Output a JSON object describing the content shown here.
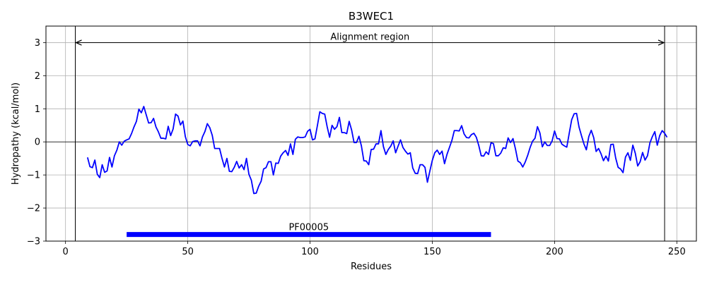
{
  "chart_data": {
    "type": "line",
    "title": "B3WEC1",
    "xlabel": "Residues",
    "ylabel": "Hydropathy (kcal/mol)",
    "xlim": [
      -8,
      258
    ],
    "ylim": [
      -3,
      3.5
    ],
    "x_ticks": [
      0,
      50,
      100,
      150,
      200,
      250
    ],
    "x_tick_labels": [
      "0",
      "50",
      "100",
      "150",
      "200",
      "250"
    ],
    "y_ticks": [
      -3,
      -2,
      -1,
      0,
      1,
      2,
      3
    ],
    "y_tick_labels": [
      "−3",
      "−2",
      "−1",
      "0",
      "1",
      "2",
      "3"
    ],
    "grid": true,
    "zero_line": true,
    "series": [
      {
        "color": "#0000ff",
        "x": [
          9,
          10,
          11,
          12,
          13,
          14,
          15,
          16,
          17,
          18,
          19,
          20,
          21,
          22,
          23,
          24,
          25,
          26,
          27,
          28,
          29,
          30,
          31,
          32,
          33,
          34,
          35,
          36,
          37,
          38,
          39,
          40,
          41,
          42,
          43,
          44,
          45,
          46,
          47,
          48,
          49,
          50,
          51,
          52,
          53,
          54,
          55,
          56,
          57,
          58,
          59,
          60,
          61,
          62,
          63,
          64,
          65,
          66,
          67,
          68,
          69,
          70,
          71,
          72,
          73,
          74,
          75,
          76,
          77,
          78,
          79,
          80,
          81,
          82,
          83,
          84,
          85,
          86,
          87,
          88,
          89,
          90,
          91,
          92,
          93,
          94,
          95,
          96,
          97,
          98,
          99,
          100,
          101,
          102,
          103,
          104,
          105,
          106,
          107,
          108,
          109,
          110,
          111,
          112,
          113,
          114,
          115,
          116,
          117,
          118,
          119,
          120,
          121,
          122,
          123,
          124,
          125,
          126,
          127,
          128,
          129,
          130,
          131,
          132,
          133,
          134,
          135,
          136,
          137,
          138,
          139,
          140,
          141,
          142,
          143,
          144,
          145,
          146,
          147,
          148,
          149,
          150,
          151,
          152,
          153,
          154,
          155,
          156,
          157,
          158,
          159,
          160,
          161,
          162,
          163,
          164,
          165,
          166,
          167,
          168,
          169,
          170,
          171,
          172,
          173,
          174,
          175,
          176,
          177,
          178,
          179,
          180,
          181,
          182,
          183,
          184,
          185,
          186,
          187,
          188,
          189,
          190,
          191,
          192,
          193,
          194,
          195,
          196,
          197,
          198,
          199,
          200,
          201,
          202,
          203,
          204,
          205,
          206,
          207,
          208,
          209,
          210,
          211,
          212,
          213,
          214,
          215,
          216,
          217,
          218,
          219,
          220,
          221,
          222,
          223,
          224,
          225,
          226,
          227,
          228,
          229,
          230,
          231,
          232,
          233,
          234,
          235,
          236,
          237,
          238,
          239,
          240,
          241,
          242,
          243,
          244,
          245,
          246
        ],
        "y": [
          -0.47,
          -0.75,
          -0.78,
          -0.55,
          -0.98,
          -1.08,
          -0.69,
          -0.92,
          -0.88,
          -0.47,
          -0.76,
          -0.42,
          -0.25,
          0.0,
          -0.1,
          0.02,
          0.06,
          0.09,
          0.25,
          0.45,
          0.62,
          0.99,
          0.88,
          1.07,
          0.82,
          0.57,
          0.58,
          0.71,
          0.45,
          0.3,
          0.11,
          0.11,
          0.09,
          0.47,
          0.19,
          0.39,
          0.84,
          0.78,
          0.51,
          0.63,
          0.16,
          -0.08,
          -0.12,
          0.01,
          0.03,
          0.03,
          -0.12,
          0.15,
          0.31,
          0.55,
          0.43,
          0.2,
          -0.2,
          -0.2,
          -0.2,
          -0.5,
          -0.76,
          -0.5,
          -0.89,
          -0.9,
          -0.77,
          -0.59,
          -0.79,
          -0.69,
          -0.84,
          -0.5,
          -0.98,
          -1.16,
          -1.56,
          -1.55,
          -1.34,
          -1.19,
          -0.82,
          -0.78,
          -0.6,
          -0.6,
          -1.0,
          -0.64,
          -0.65,
          -0.43,
          -0.33,
          -0.26,
          -0.41,
          -0.06,
          -0.38,
          0.08,
          0.15,
          0.13,
          0.13,
          0.15,
          0.32,
          0.38,
          0.06,
          0.09,
          0.49,
          0.91,
          0.86,
          0.84,
          0.46,
          0.14,
          0.5,
          0.38,
          0.46,
          0.74,
          0.28,
          0.28,
          0.25,
          0.62,
          0.36,
          -0.02,
          -0.02,
          0.17,
          -0.12,
          -0.57,
          -0.58,
          -0.69,
          -0.23,
          -0.22,
          -0.06,
          -0.06,
          0.34,
          -0.14,
          -0.38,
          -0.23,
          -0.13,
          0.03,
          -0.33,
          -0.13,
          0.06,
          -0.17,
          -0.28,
          -0.37,
          -0.33,
          -0.79,
          -0.95,
          -0.96,
          -0.69,
          -0.69,
          -0.77,
          -1.22,
          -0.88,
          -0.56,
          -0.33,
          -0.25,
          -0.38,
          -0.28,
          -0.66,
          -0.38,
          -0.17,
          0.04,
          0.34,
          0.34,
          0.33,
          0.49,
          0.24,
          0.13,
          0.12,
          0.22,
          0.26,
          0.14,
          -0.11,
          -0.42,
          -0.43,
          -0.3,
          -0.38,
          -0.03,
          -0.05,
          -0.42,
          -0.42,
          -0.34,
          -0.18,
          -0.2,
          0.12,
          -0.02,
          0.1,
          -0.21,
          -0.58,
          -0.63,
          -0.76,
          -0.61,
          -0.41,
          -0.17,
          0.02,
          0.11,
          0.46,
          0.27,
          -0.15,
          0.0,
          -0.11,
          -0.11,
          0.03,
          0.33,
          0.1,
          0.09,
          -0.07,
          -0.12,
          -0.16,
          0.26,
          0.67,
          0.85,
          0.86,
          0.45,
          0.19,
          -0.06,
          -0.24,
          0.16,
          0.35,
          0.13,
          -0.29,
          -0.2,
          -0.36,
          -0.57,
          -0.43,
          -0.58,
          -0.08,
          -0.07,
          -0.49,
          -0.77,
          -0.82,
          -0.93,
          -0.46,
          -0.33,
          -0.56,
          -0.1,
          -0.34,
          -0.73,
          -0.6,
          -0.32,
          -0.55,
          -0.42,
          -0.03,
          0.16,
          0.31,
          -0.1,
          0.19,
          0.34,
          0.26,
          0.14
        ]
      }
    ],
    "vlines": [
      4,
      245
    ],
    "annotations": {
      "region_label": "Alignment region",
      "region_range": [
        4,
        245
      ],
      "region_y": 3,
      "domain_label": "PF00005",
      "domain_range": [
        25,
        174
      ],
      "domain_y": -2.8,
      "domain_color": "#0000ff"
    }
  }
}
